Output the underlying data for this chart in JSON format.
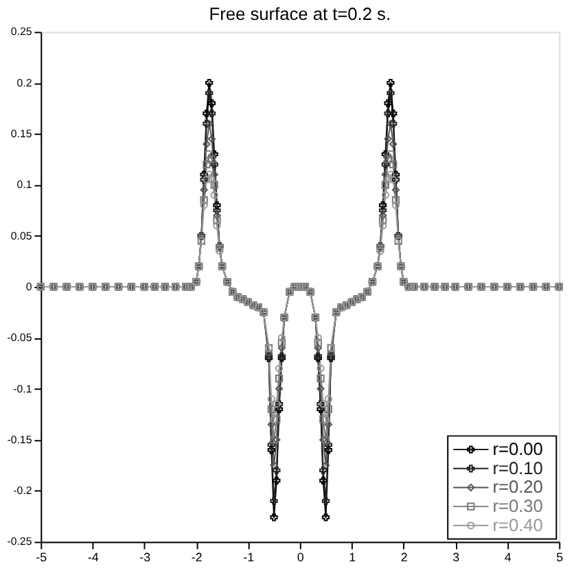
{
  "chart_data": {
    "type": "line",
    "title": "Free surface at t=0.2 s.",
    "x": [
      -5.0,
      -4.75,
      -4.5,
      -4.25,
      -4.0,
      -3.75,
      -3.5,
      -3.25,
      -3.0,
      -2.8,
      -2.6,
      -2.4,
      -2.2,
      -2.1,
      -2.0,
      -1.95,
      -1.9,
      -1.85,
      -1.8,
      -1.75,
      -1.7,
      -1.65,
      -1.6,
      -1.55,
      -1.5,
      -1.4,
      -1.3,
      -1.2,
      -1.1,
      -1.0,
      -0.9,
      -0.8,
      -0.7,
      -0.6,
      -0.55,
      -0.5,
      -0.45,
      -0.4,
      -0.35,
      -0.3,
      -0.2,
      -0.1,
      0,
      0.1,
      0.2,
      0.3,
      0.35,
      0.4,
      0.45,
      0.5,
      0.55,
      0.6,
      0.7,
      0.8,
      0.9,
      1.0,
      1.1,
      1.2,
      1.3,
      1.4,
      1.5,
      1.55,
      1.6,
      1.65,
      1.7,
      1.75,
      1.8,
      1.85,
      1.9,
      1.95,
      2.0,
      2.1,
      2.2,
      2.4,
      2.6,
      2.8,
      3.0,
      3.25,
      3.5,
      3.75,
      4.0,
      4.25,
      4.5,
      4.75,
      5.0
    ],
    "series": [
      {
        "name": "r=0.00",
        "color": "#000000",
        "marker": "cross",
        "values": [
          0,
          0,
          0,
          0,
          0,
          0,
          0,
          0,
          0,
          0,
          0,
          0,
          0,
          0,
          0.005,
          0.02,
          0.05,
          0.11,
          0.17,
          0.2,
          0.18,
          0.13,
          0.08,
          0.04,
          0.02,
          0.005,
          -0.005,
          -0.01,
          -0.012,
          -0.015,
          -0.018,
          -0.02,
          -0.025,
          -0.07,
          -0.16,
          -0.226,
          -0.19,
          -0.12,
          -0.07,
          -0.03,
          -0.005,
          0,
          0,
          0,
          -0.005,
          -0.03,
          -0.07,
          -0.12,
          -0.19,
          -0.226,
          -0.16,
          -0.07,
          -0.025,
          -0.02,
          -0.018,
          -0.015,
          -0.012,
          -0.01,
          -0.005,
          0.005,
          0.02,
          0.04,
          0.08,
          0.13,
          0.18,
          0.2,
          0.17,
          0.11,
          0.05,
          0.02,
          0.005,
          0,
          0,
          0,
          0,
          0,
          0,
          0,
          0,
          0,
          0,
          0,
          0,
          0,
          0
        ]
      },
      {
        "name": "r=0.10",
        "color": "#222222",
        "marker": "cross",
        "values": [
          0,
          0,
          0,
          0,
          0,
          0,
          0,
          0,
          0,
          0,
          0,
          0,
          0,
          0,
          0.005,
          0.02,
          0.05,
          0.105,
          0.16,
          0.19,
          0.17,
          0.12,
          0.075,
          0.04,
          0.02,
          0.005,
          -0.005,
          -0.01,
          -0.012,
          -0.015,
          -0.018,
          -0.02,
          -0.025,
          -0.068,
          -0.155,
          -0.21,
          -0.18,
          -0.115,
          -0.068,
          -0.03,
          -0.005,
          0,
          0,
          0,
          -0.005,
          -0.03,
          -0.068,
          -0.115,
          -0.18,
          -0.21,
          -0.155,
          -0.068,
          -0.025,
          -0.02,
          -0.018,
          -0.015,
          -0.012,
          -0.01,
          -0.005,
          0.005,
          0.02,
          0.04,
          0.075,
          0.12,
          0.17,
          0.19,
          0.16,
          0.105,
          0.05,
          0.02,
          0.005,
          0,
          0,
          0,
          0,
          0,
          0,
          0,
          0,
          0,
          0,
          0,
          0,
          0,
          0
        ]
      },
      {
        "name": "r=0.20",
        "color": "#555555",
        "marker": "diamond",
        "values": [
          0,
          0,
          0,
          0,
          0,
          0,
          0,
          0,
          0,
          0,
          0,
          0,
          0,
          0,
          0.005,
          0.02,
          0.05,
          0.095,
          0.14,
          0.16,
          0.145,
          0.11,
          0.07,
          0.04,
          0.02,
          0.005,
          -0.005,
          -0.01,
          -0.012,
          -0.015,
          -0.018,
          -0.02,
          -0.025,
          -0.065,
          -0.135,
          -0.175,
          -0.15,
          -0.1,
          -0.06,
          -0.03,
          -0.005,
          0,
          0,
          0,
          -0.005,
          -0.03,
          -0.06,
          -0.1,
          -0.15,
          -0.175,
          -0.135,
          -0.065,
          -0.025,
          -0.02,
          -0.018,
          -0.015,
          -0.012,
          -0.01,
          -0.005,
          0.005,
          0.02,
          0.04,
          0.07,
          0.11,
          0.145,
          0.16,
          0.14,
          0.095,
          0.05,
          0.02,
          0.005,
          0,
          0,
          0,
          0,
          0,
          0,
          0,
          0,
          0,
          0,
          0,
          0,
          0,
          0
        ]
      },
      {
        "name": "r=0.30",
        "color": "#777777",
        "marker": "square",
        "values": [
          0,
          0,
          0,
          0,
          0,
          0,
          0,
          0,
          0,
          0,
          0,
          0,
          0,
          0,
          0.005,
          0.02,
          0.045,
          0.085,
          0.12,
          0.13,
          0.125,
          0.1,
          0.065,
          0.038,
          0.02,
          0.005,
          -0.005,
          -0.01,
          -0.012,
          -0.015,
          -0.018,
          -0.02,
          -0.025,
          -0.06,
          -0.12,
          -0.15,
          -0.13,
          -0.09,
          -0.055,
          -0.03,
          -0.005,
          0,
          0,
          0,
          -0.005,
          -0.03,
          -0.055,
          -0.09,
          -0.13,
          -0.15,
          -0.12,
          -0.06,
          -0.025,
          -0.02,
          -0.018,
          -0.015,
          -0.012,
          -0.01,
          -0.005,
          0.005,
          0.02,
          0.038,
          0.065,
          0.1,
          0.125,
          0.13,
          0.12,
          0.085,
          0.045,
          0.02,
          0.005,
          0,
          0,
          0,
          0,
          0,
          0,
          0,
          0,
          0,
          0,
          0,
          0,
          0,
          0
        ]
      },
      {
        "name": "r=0.40",
        "color": "#999999",
        "marker": "circle",
        "values": [
          0,
          0,
          0,
          0,
          0,
          0,
          0,
          0,
          0,
          0,
          0,
          0,
          0,
          0,
          0.005,
          0.02,
          0.045,
          0.08,
          0.105,
          0.11,
          0.105,
          0.09,
          0.06,
          0.035,
          0.02,
          0.005,
          -0.005,
          -0.01,
          -0.012,
          -0.015,
          -0.018,
          -0.02,
          -0.025,
          -0.06,
          -0.11,
          -0.13,
          -0.115,
          -0.08,
          -0.05,
          -0.03,
          -0.005,
          0,
          0,
          0,
          -0.005,
          -0.03,
          -0.05,
          -0.08,
          -0.115,
          -0.13,
          -0.11,
          -0.06,
          -0.025,
          -0.02,
          -0.018,
          -0.015,
          -0.012,
          -0.01,
          -0.005,
          0.005,
          0.02,
          0.035,
          0.06,
          0.09,
          0.105,
          0.11,
          0.105,
          0.08,
          0.045,
          0.02,
          0.005,
          0,
          0,
          0,
          0,
          0,
          0,
          0,
          0,
          0,
          0,
          0,
          0,
          0,
          0
        ]
      }
    ],
    "xlim": [
      -5,
      5
    ],
    "xticks": [
      -5,
      -4,
      -3,
      -2,
      -1,
      0,
      1,
      2,
      3,
      4,
      5
    ],
    "ylim": [
      -0.25,
      0.25
    ],
    "yticks": [
      -0.25,
      -0.2,
      -0.15,
      -0.1,
      -0.05,
      0,
      0.05,
      0.1,
      0.15,
      0.2,
      0.25
    ],
    "grid": false,
    "legend": "bottom right",
    "line_style": "solid"
  }
}
